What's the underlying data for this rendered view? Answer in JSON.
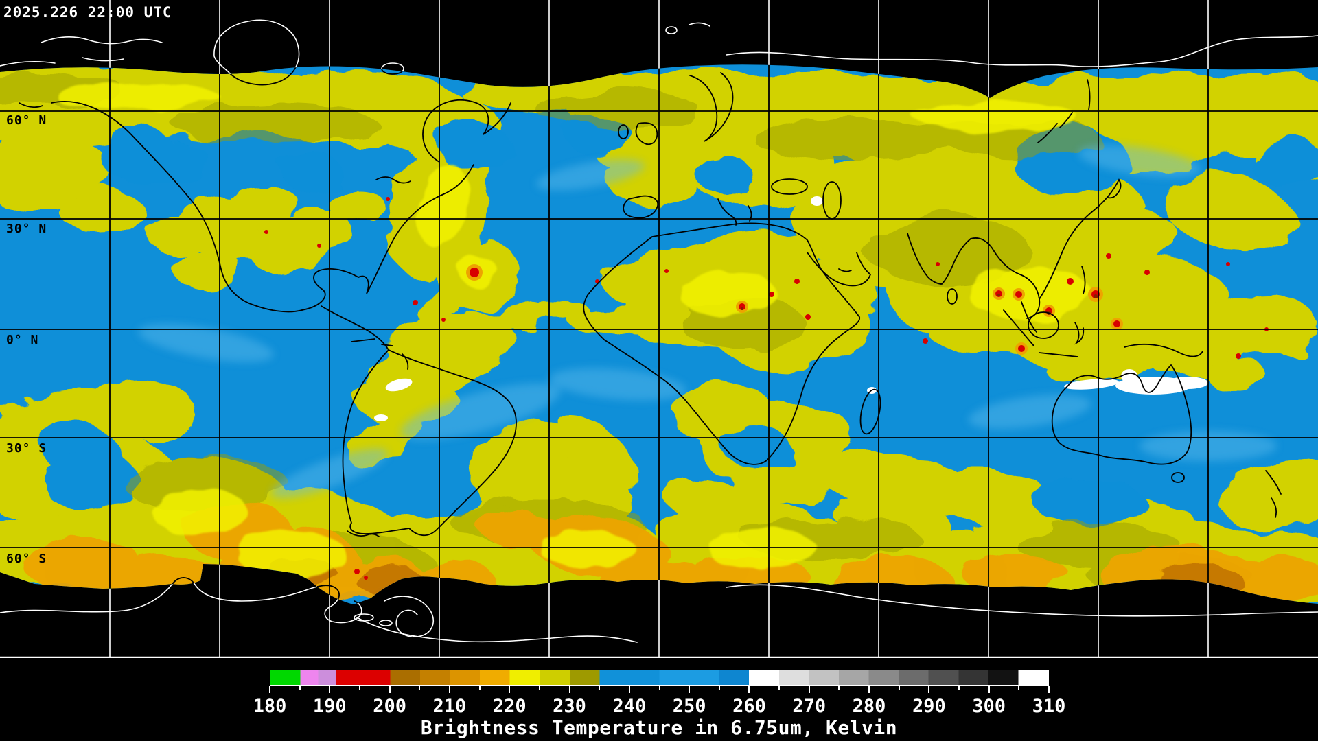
{
  "header": {
    "timestamp": "2025.226 22:00 UTC"
  },
  "map": {
    "projection": "global equirectangular composite",
    "latitude_labels": [
      {
        "text": "60° N"
      },
      {
        "text": "30° N"
      },
      {
        "text": "0° N"
      },
      {
        "text": "30° S"
      },
      {
        "text": "60° S"
      }
    ]
  },
  "colorbar": {
    "caption": "Brightness Temperature in 6.75um, Kelvin",
    "min": 180,
    "max": 310,
    "major_ticks": [
      {
        "value": 180,
        "label": "180"
      },
      {
        "value": 190,
        "label": "190"
      },
      {
        "value": 200,
        "label": "200"
      },
      {
        "value": 210,
        "label": "210"
      },
      {
        "value": 220,
        "label": "220"
      },
      {
        "value": 230,
        "label": "230"
      },
      {
        "value": 240,
        "label": "240"
      },
      {
        "value": 250,
        "label": "250"
      },
      {
        "value": 260,
        "label": "260"
      },
      {
        "value": 270,
        "label": "270"
      },
      {
        "value": 280,
        "label": "280"
      },
      {
        "value": 290,
        "label": "290"
      },
      {
        "value": 300,
        "label": "300"
      },
      {
        "value": 310,
        "label": "310"
      }
    ],
    "minor_ticks": [
      185,
      195,
      205,
      215,
      225,
      235,
      245,
      255,
      265,
      275,
      285,
      295,
      305
    ],
    "segments": [
      {
        "from": 180,
        "to": 185,
        "color": "#00d800"
      },
      {
        "from": 185,
        "to": 188,
        "color": "#ee85ee"
      },
      {
        "from": 188,
        "to": 191,
        "color": "#cc8edc"
      },
      {
        "from": 191,
        "to": 200,
        "color": "#dc0000"
      },
      {
        "from": 200,
        "to": 205,
        "color": "#aa6e00"
      },
      {
        "from": 205,
        "to": 210,
        "color": "#c48000"
      },
      {
        "from": 210,
        "to": 215,
        "color": "#dc9400"
      },
      {
        "from": 215,
        "to": 220,
        "color": "#f0ac00"
      },
      {
        "from": 220,
        "to": 225,
        "color": "#f0ee00"
      },
      {
        "from": 225,
        "to": 230,
        "color": "#cece00"
      },
      {
        "from": 230,
        "to": 235,
        "color": "#9e9a00"
      },
      {
        "from": 235,
        "to": 245,
        "color": "#1191d9"
      },
      {
        "from": 245,
        "to": 255,
        "color": "#1c9ce2"
      },
      {
        "from": 255,
        "to": 260,
        "color": "#0e86d0"
      },
      {
        "from": 260,
        "to": 265,
        "color": "#ffffff"
      },
      {
        "from": 265,
        "to": 270,
        "color": "#dedede"
      },
      {
        "from": 270,
        "to": 275,
        "color": "#c2c2c2"
      },
      {
        "from": 275,
        "to": 280,
        "color": "#a6a6a6"
      },
      {
        "from": 280,
        "to": 285,
        "color": "#8a8a8a"
      },
      {
        "from": 285,
        "to": 290,
        "color": "#6c6c6c"
      },
      {
        "from": 290,
        "to": 295,
        "color": "#505050"
      },
      {
        "from": 295,
        "to": 300,
        "color": "#343434"
      },
      {
        "from": 300,
        "to": 305,
        "color": "#121212"
      },
      {
        "from": 305,
        "to": 310,
        "color": "#ffffff"
      }
    ]
  },
  "palette": {
    "space_black": "#000000",
    "data_blue": "#0f8fd8",
    "light_blue": "#5ebcec",
    "cloud_yellow": "#d2d200",
    "cloud_olive": "#999e00",
    "cloud_bright": "#f2f200",
    "cloud_orange": "#eda400",
    "cloud_deep_orange": "#c27400",
    "cloud_red": "#d80000",
    "cloud_dark_red": "#8a1c00",
    "cloud_white": "#ffffff",
    "coastline_over_space": "#ffffff",
    "coastline_over_data": "#000000",
    "text": "#ffffff",
    "latitude_text": "#000000"
  }
}
